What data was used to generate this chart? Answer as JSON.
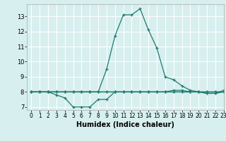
{
  "xlabel": "Humidex (Indice chaleur)",
  "xlim": [
    -0.5,
    23
  ],
  "ylim": [
    6.8,
    13.8
  ],
  "yticks": [
    7,
    8,
    9,
    10,
    11,
    12,
    13
  ],
  "xticks": [
    0,
    1,
    2,
    3,
    4,
    5,
    6,
    7,
    8,
    9,
    10,
    11,
    12,
    13,
    14,
    15,
    16,
    17,
    18,
    19,
    20,
    21,
    22,
    23
  ],
  "bg_color": "#d7efef",
  "line_color": "#1e7b6e",
  "grid_color": "#ffffff",
  "lines": [
    {
      "x": [
        0,
        1,
        2,
        3,
        4,
        5,
        6,
        7,
        8,
        9,
        10,
        11,
        12,
        13,
        14,
        15,
        16,
        17,
        18,
        19,
        20,
        21,
        22,
        23
      ],
      "y": [
        8.0,
        8.0,
        8.0,
        8.0,
        8.0,
        8.0,
        8.0,
        8.0,
        8.0,
        9.5,
        11.7,
        13.1,
        13.1,
        13.5,
        12.1,
        10.9,
        9.0,
        8.8,
        8.4,
        8.1,
        8.0,
        7.9,
        7.9,
        8.1
      ]
    },
    {
      "x": [
        0,
        1,
        2,
        3,
        4,
        5,
        6,
        7,
        8,
        9,
        10,
        11,
        12,
        13,
        14,
        15,
        16,
        17,
        18,
        19,
        20,
        21,
        22,
        23
      ],
      "y": [
        8.0,
        8.0,
        8.0,
        7.8,
        7.6,
        7.0,
        7.0,
        7.0,
        7.5,
        7.5,
        8.0,
        8.0,
        8.0,
        8.0,
        8.0,
        8.0,
        8.0,
        8.0,
        8.0,
        8.0,
        8.0,
        7.9,
        7.9,
        8.0
      ]
    },
    {
      "x": [
        0,
        1,
        2,
        3,
        4,
        5,
        6,
        7,
        8,
        9,
        10,
        11,
        12,
        13,
        14,
        15,
        16,
        17,
        18,
        19,
        20,
        21,
        22,
        23
      ],
      "y": [
        8.0,
        8.0,
        8.0,
        8.0,
        8.0,
        8.0,
        8.0,
        8.0,
        8.0,
        8.0,
        8.0,
        8.0,
        8.0,
        8.0,
        8.0,
        8.0,
        8.0,
        8.0,
        8.0,
        8.0,
        8.0,
        8.0,
        8.0,
        8.0
      ]
    },
    {
      "x": [
        0,
        1,
        2,
        3,
        4,
        5,
        6,
        7,
        8,
        9,
        10,
        11,
        12,
        13,
        14,
        15,
        16,
        17,
        18,
        19,
        20,
        21,
        22,
        23
      ],
      "y": [
        8.0,
        8.0,
        8.0,
        8.0,
        8.0,
        8.0,
        8.0,
        8.0,
        8.0,
        8.0,
        8.0,
        8.0,
        8.0,
        8.0,
        8.0,
        8.0,
        8.0,
        8.1,
        8.1,
        8.0,
        8.0,
        8.0,
        8.0,
        8.0
      ]
    }
  ]
}
